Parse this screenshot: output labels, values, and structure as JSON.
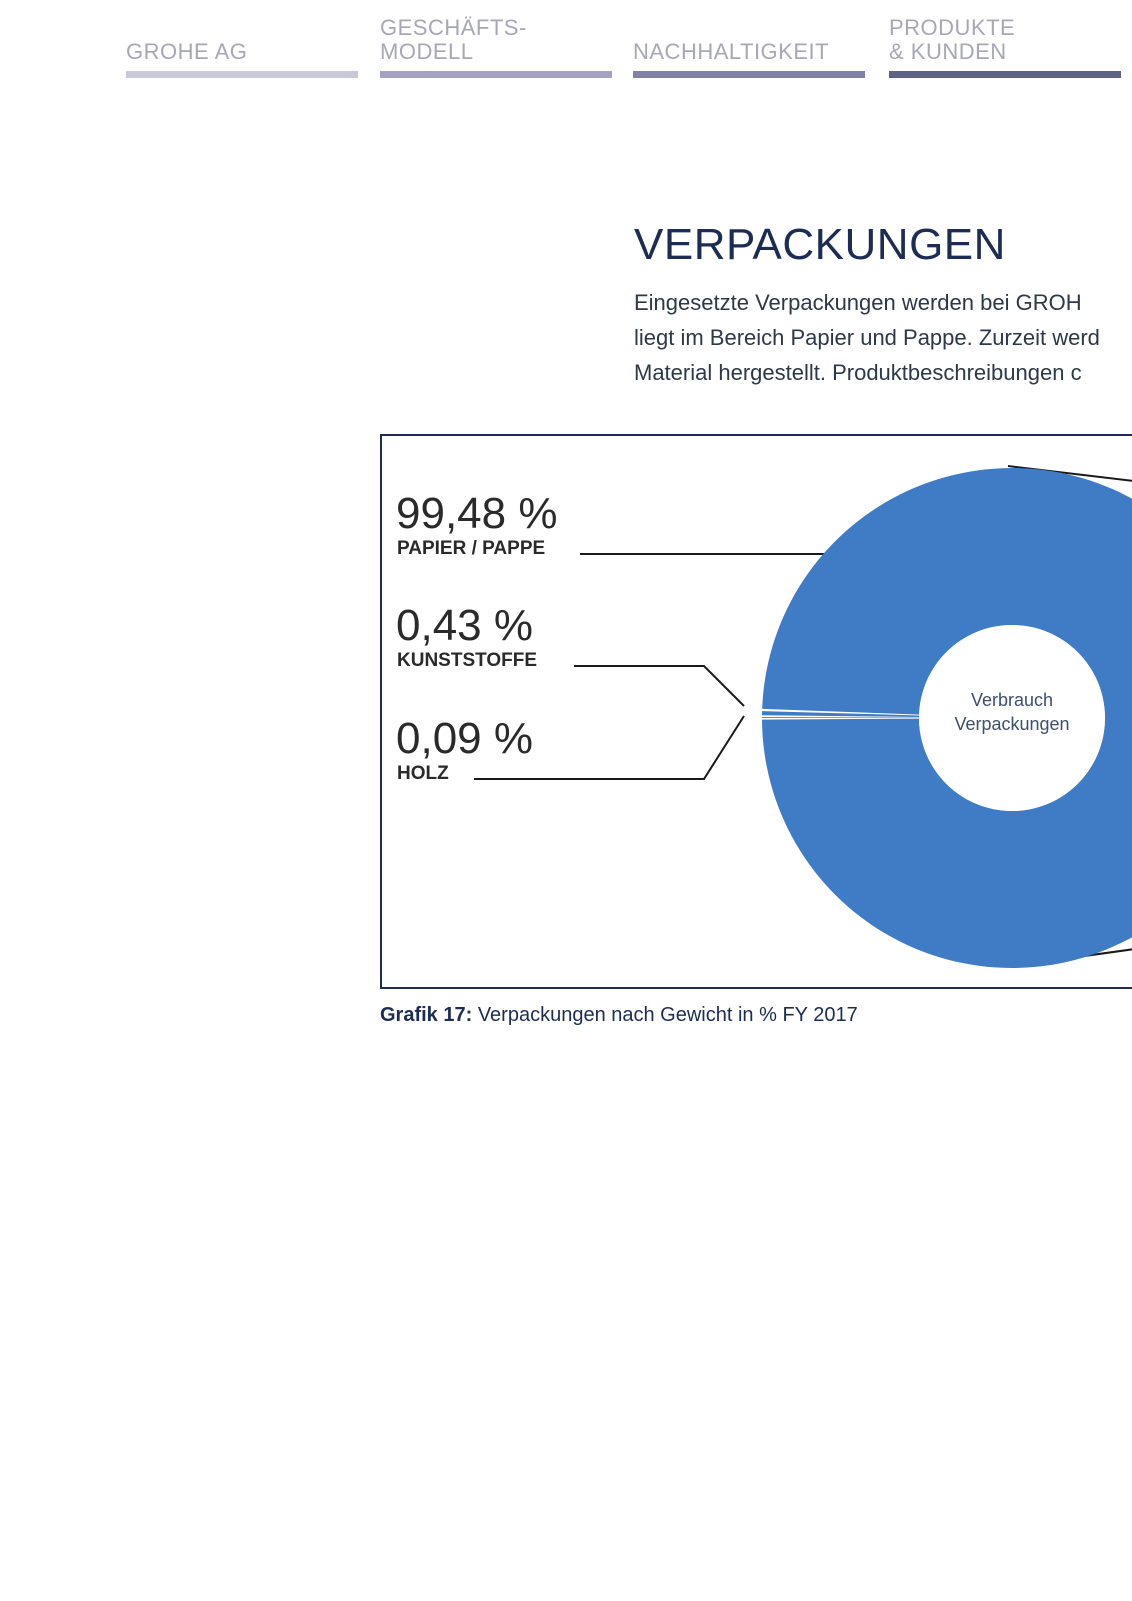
{
  "nav": [
    {
      "label": "GROHE AG",
      "color": "#cac9dc"
    },
    {
      "label": "GESCHÄFTS-\nMODELL",
      "color": "#a3a2c0"
    },
    {
      "label": "NACHHALTIGKEIT",
      "color": "#8180a6"
    },
    {
      "label": "PRODUKTE\n& KUNDEN",
      "color": "#5f6286"
    }
  ],
  "section": {
    "title": "VERPACKUNGEN",
    "intro_lines": [
      "Eingesetzte Verpackungen werden bei GROH",
      "liegt im Bereich Papier und Pappe. Zurzeit werd",
      "Material hergestellt. Produktbeschreibungen c"
    ]
  },
  "chart_data": {
    "type": "pie",
    "center_label": [
      "Verbrauch",
      "Verpackungen"
    ],
    "slices": [
      {
        "value_label": "99,48 %",
        "name": "PAPIER / PAPPE",
        "value": 99.48,
        "color": "#3f7cc5"
      },
      {
        "value_label": "0,43 %",
        "name": "KUNSTSTOFFE",
        "value": 0.43,
        "color": "#3f7cc5"
      },
      {
        "value_label": "0,09 %",
        "name": "HOLZ",
        "value": 0.09,
        "color": "#3f7cc5"
      }
    ]
  },
  "caption": {
    "label": "Grafik 17:",
    "text": " Verpackungen nach Gewicht in % FY 2017"
  }
}
